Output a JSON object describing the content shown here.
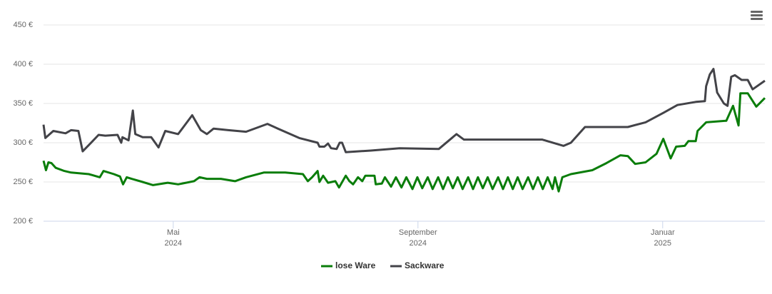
{
  "chart_data": {
    "type": "line",
    "xlim": [
      2.88,
      14.67
    ],
    "xticks": [
      {
        "value": 5,
        "label": [
          "Mai",
          "2024"
        ]
      },
      {
        "value": 9,
        "label": [
          "September",
          "2024"
        ]
      },
      {
        "value": 13,
        "label": [
          "Januar",
          "2025"
        ]
      }
    ],
    "ylim": [
      200,
      450
    ],
    "yticks": [
      {
        "value": 200,
        "label": "200 €"
      },
      {
        "value": 250,
        "label": "250 €"
      },
      {
        "value": 300,
        "label": "300 €"
      },
      {
        "value": 350,
        "label": "350 €"
      },
      {
        "value": 400,
        "label": "400 €"
      },
      {
        "value": 450,
        "label": "450 €"
      }
    ],
    "grid": true,
    "legend": "bottom",
    "series": [
      {
        "name": "lose Ware",
        "color": "#0a7d0a",
        "x": [
          2.88,
          2.92,
          2.96,
          3.01,
          3.08,
          3.22,
          3.33,
          3.62,
          3.8,
          3.86,
          4.03,
          4.13,
          4.18,
          4.24,
          4.32,
          4.5,
          4.67,
          4.91,
          5.08,
          5.34,
          5.43,
          5.55,
          5.78,
          6.01,
          6.19,
          6.48,
          6.83,
          7.12,
          7.2,
          7.27,
          7.36,
          7.39,
          7.45,
          7.53,
          7.65,
          7.71,
          7.82,
          7.88,
          7.94,
          8.02,
          8.09,
          8.14,
          8.29,
          8.31,
          8.41,
          8.46,
          8.56,
          8.64,
          8.73,
          8.81,
          8.91,
          8.99,
          9.07,
          9.16,
          9.24,
          9.33,
          9.41,
          9.49,
          9.57,
          9.65,
          9.73,
          9.82,
          9.9,
          9.98,
          10.06,
          10.14,
          10.22,
          10.31,
          10.39,
          10.47,
          10.55,
          10.63,
          10.71,
          10.8,
          10.88,
          10.96,
          11.04,
          11.12,
          11.2,
          11.24,
          11.3,
          11.36,
          11.5,
          11.85,
          12.08,
          12.31,
          12.43,
          12.55,
          12.72,
          12.9,
          13.01,
          13.13,
          13.22,
          13.36,
          13.42,
          13.54,
          13.57,
          13.71,
          14.04,
          14.15,
          14.24,
          14.27,
          14.39,
          14.53,
          14.67
        ],
        "values": [
          277,
          265,
          275,
          274,
          268,
          264,
          262,
          260,
          256,
          264,
          260,
          257,
          247,
          256,
          254,
          250,
          246,
          249,
          247,
          251,
          256,
          254,
          254,
          251,
          256,
          262,
          262,
          260,
          251,
          256,
          264,
          250,
          258,
          249,
          251,
          243,
          258,
          251,
          247,
          256,
          251,
          258,
          258,
          247,
          248,
          256,
          244,
          256,
          243,
          256,
          241,
          256,
          242,
          256,
          241,
          256,
          241,
          256,
          242,
          256,
          241,
          256,
          241,
          256,
          242,
          256,
          241,
          256,
          241,
          256,
          241,
          256,
          241,
          256,
          241,
          256,
          241,
          256,
          241,
          256,
          238,
          256,
          260,
          265,
          274,
          284,
          283,
          273,
          275,
          286,
          305,
          280,
          295,
          296,
          302,
          302,
          315,
          326,
          328,
          347,
          322,
          363,
          363,
          346,
          357
        ]
      },
      {
        "name": "Sackware",
        "color": "#434348",
        "x": [
          2.88,
          2.91,
          3.04,
          3.24,
          3.33,
          3.45,
          3.52,
          3.62,
          3.78,
          3.89,
          4.09,
          4.15,
          4.17,
          4.27,
          4.34,
          4.38,
          4.5,
          4.64,
          4.76,
          4.87,
          5.08,
          5.31,
          5.45,
          5.55,
          5.66,
          5.9,
          6.19,
          6.54,
          6.71,
          7.06,
          7.36,
          7.39,
          7.47,
          7.53,
          7.58,
          7.67,
          7.72,
          7.76,
          7.82,
          8.23,
          8.7,
          9.34,
          9.63,
          9.75,
          10.33,
          11.03,
          11.38,
          11.5,
          11.73,
          12.43,
          12.72,
          13.01,
          13.24,
          13.54,
          13.69,
          13.71,
          13.77,
          13.83,
          13.89,
          14.0,
          14.06,
          14.12,
          14.18,
          14.29,
          14.39,
          14.47,
          14.67
        ],
        "values": [
          323,
          306,
          315,
          312,
          316,
          315,
          289,
          297,
          310,
          309,
          310,
          300,
          307,
          303,
          341,
          311,
          307,
          307,
          294,
          315,
          311,
          335,
          316,
          311,
          318,
          316,
          314,
          324,
          318,
          306,
          300,
          295,
          295,
          299,
          293,
          292,
          300,
          300,
          288,
          290,
          293,
          292,
          311,
          304,
          304,
          304,
          296,
          300,
          320,
          320,
          326,
          338,
          348,
          352,
          353,
          372,
          387,
          394,
          364,
          350,
          347,
          384,
          386,
          380,
          380,
          368,
          379
        ]
      }
    ]
  }
}
